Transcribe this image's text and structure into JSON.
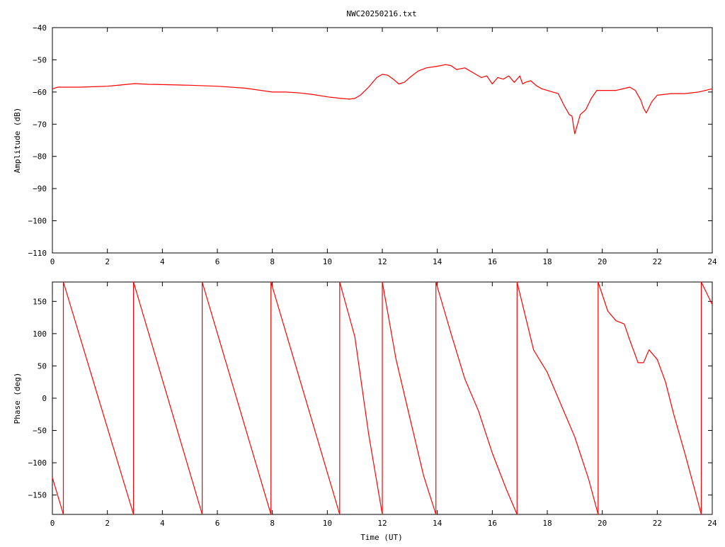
{
  "chart_data": [
    {
      "type": "line",
      "title": "NWC20250216.txt",
      "xlabel": "",
      "ylabel": "Amplitude (dB)",
      "xlim": [
        0,
        24
      ],
      "ylim": [
        -110,
        -40
      ],
      "x_ticks": [
        0,
        2,
        4,
        6,
        8,
        10,
        12,
        14,
        16,
        18,
        20,
        22,
        24
      ],
      "y_ticks": [
        -110,
        -100,
        -90,
        -80,
        -70,
        -60,
        -50,
        -40
      ],
      "x_tick_labels": [
        "0",
        "2",
        "4",
        "6",
        "8",
        "10",
        "12",
        "14",
        "16",
        "18",
        "20",
        "22",
        "24"
      ],
      "y_tick_labels": [
        "−110",
        "−100",
        "−90",
        "−80",
        "−70",
        "−60",
        "−50",
        "−40"
      ],
      "grid": false,
      "color": "#ff0000",
      "series": [
        {
          "x": [
            0,
            0.2,
            1,
            2,
            2.5,
            3,
            3.5,
            4,
            5,
            6,
            7,
            8,
            8.5,
            9,
            9.5,
            10,
            10.5,
            10.8,
            11,
            11.2,
            11.5,
            11.8,
            12,
            12.2,
            12.4,
            12.6,
            12.8,
            13,
            13.3,
            13.6,
            14,
            14.3,
            14.5,
            14.7,
            15,
            15.3,
            15.6,
            15.8,
            16,
            16.2,
            16.4,
            16.6,
            16.8,
            17,
            17.1,
            17.2,
            17.4,
            17.6,
            17.8,
            18,
            18.2,
            18.4,
            18.6,
            18.8,
            18.9,
            19,
            19.2,
            19.4,
            19.6,
            19.8,
            20,
            20.5,
            21,
            21.2,
            21.4,
            21.5,
            21.6,
            21.8,
            22,
            22.5,
            23,
            23.5,
            24
          ],
          "y": [
            -59,
            -58.5,
            -58.5,
            -58.2,
            -57.8,
            -57.4,
            -57.6,
            -57.7,
            -57.9,
            -58.2,
            -58.8,
            -60,
            -60,
            -60.3,
            -60.8,
            -61.5,
            -62,
            -62.2,
            -62,
            -61,
            -58.5,
            -55.5,
            -54.5,
            -54.8,
            -56,
            -57.5,
            -57,
            -55.5,
            -53.5,
            -52.5,
            -52,
            -51.5,
            -51.8,
            -53,
            -52.5,
            -54,
            -55.5,
            -55,
            -57.5,
            -55.5,
            -56,
            -55,
            -57,
            -55,
            -57.5,
            -57,
            -56.5,
            -58,
            -59,
            -59.5,
            -60,
            -60.5,
            -64,
            -67,
            -67.5,
            -73,
            -67,
            -65.5,
            -62,
            -59.5,
            -59.5,
            -59.5,
            -58.5,
            -59.5,
            -62.5,
            -65,
            -66.5,
            -63,
            -61,
            -60.5,
            -60.5,
            -60,
            -59
          ]
        }
      ]
    },
    {
      "type": "line",
      "title": "",
      "xlabel": "Time (UT)",
      "ylabel": "Phase (deg)",
      "xlim": [
        0,
        24
      ],
      "ylim": [
        -180,
        180
      ],
      "x_ticks": [
        0,
        2,
        4,
        6,
        8,
        10,
        12,
        14,
        16,
        18,
        20,
        22,
        24
      ],
      "y_ticks": [
        -150,
        -100,
        -50,
        0,
        50,
        100,
        150
      ],
      "x_tick_labels": [
        "0",
        "2",
        "4",
        "6",
        "8",
        "10",
        "12",
        "14",
        "16",
        "18",
        "20",
        "22",
        "24"
      ],
      "y_tick_labels": [
        "−150",
        "−100",
        "−50",
        "0",
        "50",
        "100",
        "150"
      ],
      "grid": false,
      "color": "#ff0000",
      "series": [
        {
          "segments": [
            {
              "x": [
                0,
                0.4
              ],
              "y": [
                -123,
                -180
              ]
            },
            {
              "x": [
                0.4,
                0.4,
                2.95
              ],
              "y": [
                -180,
                180,
                -180
              ]
            },
            {
              "x": [
                2.95,
                2.95,
                5.45
              ],
              "y": [
                -180,
                180,
                -180
              ]
            },
            {
              "x": [
                5.45,
                5.45,
                7.95
              ],
              "y": [
                -180,
                180,
                -180
              ]
            },
            {
              "x": [
                7.95,
                7.95,
                10.45
              ],
              "y": [
                -180,
                180,
                -180
              ]
            },
            {
              "x": [
                10.45,
                10.45,
                11.0,
                11.5,
                12.0
              ],
              "y": [
                -180,
                180,
                95,
                -55,
                -180
              ]
            },
            {
              "x": [
                12.0,
                12.0,
                12.5,
                13.0,
                13.5,
                13.95
              ],
              "y": [
                -180,
                180,
                60,
                -30,
                -120,
                -180
              ]
            },
            {
              "x": [
                13.95,
                13.95,
                14.5,
                15.0,
                15.5,
                16.0,
                16.5,
                16.9
              ],
              "y": [
                -180,
                180,
                100,
                30,
                -20,
                -85,
                -140,
                -180
              ]
            },
            {
              "x": [
                16.9,
                16.9,
                17.5,
                18.0,
                18.5,
                19.0,
                19.5,
                19.85
              ],
              "y": [
                -180,
                180,
                75,
                40,
                -10,
                -60,
                -125,
                -180
              ]
            },
            {
              "x": [
                19.85,
                19.85,
                20.2,
                20.5,
                20.8,
                21.0,
                21.3,
                21.5,
                21.7,
                22.0,
                22.3,
                22.6,
                23.0,
                23.35,
                23.6
              ],
              "y": [
                -180,
                180,
                135,
                120,
                115,
                90,
                55,
                55,
                75,
                60,
                25,
                -25,
                -85,
                -140,
                -180
              ]
            },
            {
              "x": [
                23.6,
                23.6,
                24
              ],
              "y": [
                -180,
                180,
                145
              ]
            }
          ]
        }
      ]
    }
  ]
}
